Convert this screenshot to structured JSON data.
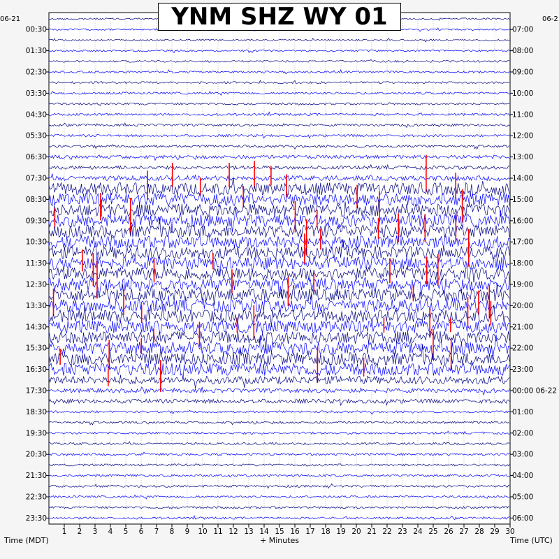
{
  "title": "YNM SHZ WY 01",
  "left_date": "06-21",
  "right_date": "06-2",
  "left_axis_label": "Time (MDT)",
  "right_axis_label": "Time (UTC)",
  "x_axis_label": "+ Minutes",
  "colors": {
    "trace_dark": "#000080",
    "trace_blue": "#0000ff",
    "clip": "#ff0000",
    "grid": "#999999",
    "background": "#ffffff"
  },
  "chart_data": {
    "type": "helicorder",
    "title": "YNM SHZ WY 01",
    "xlabel": "+ Minutes",
    "xlim": [
      0,
      30
    ],
    "x_ticks": [
      1,
      2,
      3,
      4,
      5,
      6,
      7,
      8,
      9,
      10,
      11,
      12,
      13,
      14,
      15,
      16,
      17,
      18,
      19,
      20,
      21,
      22,
      23,
      24,
      25,
      26,
      27,
      28,
      29,
      30
    ],
    "minutes_per_line": 30,
    "left_tick_labels": [
      "00:30",
      "01:30",
      "02:30",
      "03:30",
      "04:30",
      "05:30",
      "06:30",
      "07:30",
      "08:30",
      "09:30",
      "10:30",
      "11:30",
      "12:30",
      "13:30",
      "14:30",
      "15:30",
      "16:30",
      "17:30",
      "18:30",
      "19:30",
      "20:30",
      "21:30",
      "22:30",
      "23:30"
    ],
    "right_tick_labels": [
      "07:00",
      "08:00",
      "09:00",
      "10:00",
      "11:00",
      "12:00",
      "13:00",
      "14:00",
      "15:00",
      "16:00",
      "17:00",
      "18:00",
      "19:00",
      "20:00",
      "21:00",
      "22:00",
      "23:00",
      "00:00 06-22",
      "01:00",
      "02:00",
      "03:00",
      "04:00",
      "05:00",
      "06:00"
    ],
    "line_count": 48,
    "grid": true
  }
}
